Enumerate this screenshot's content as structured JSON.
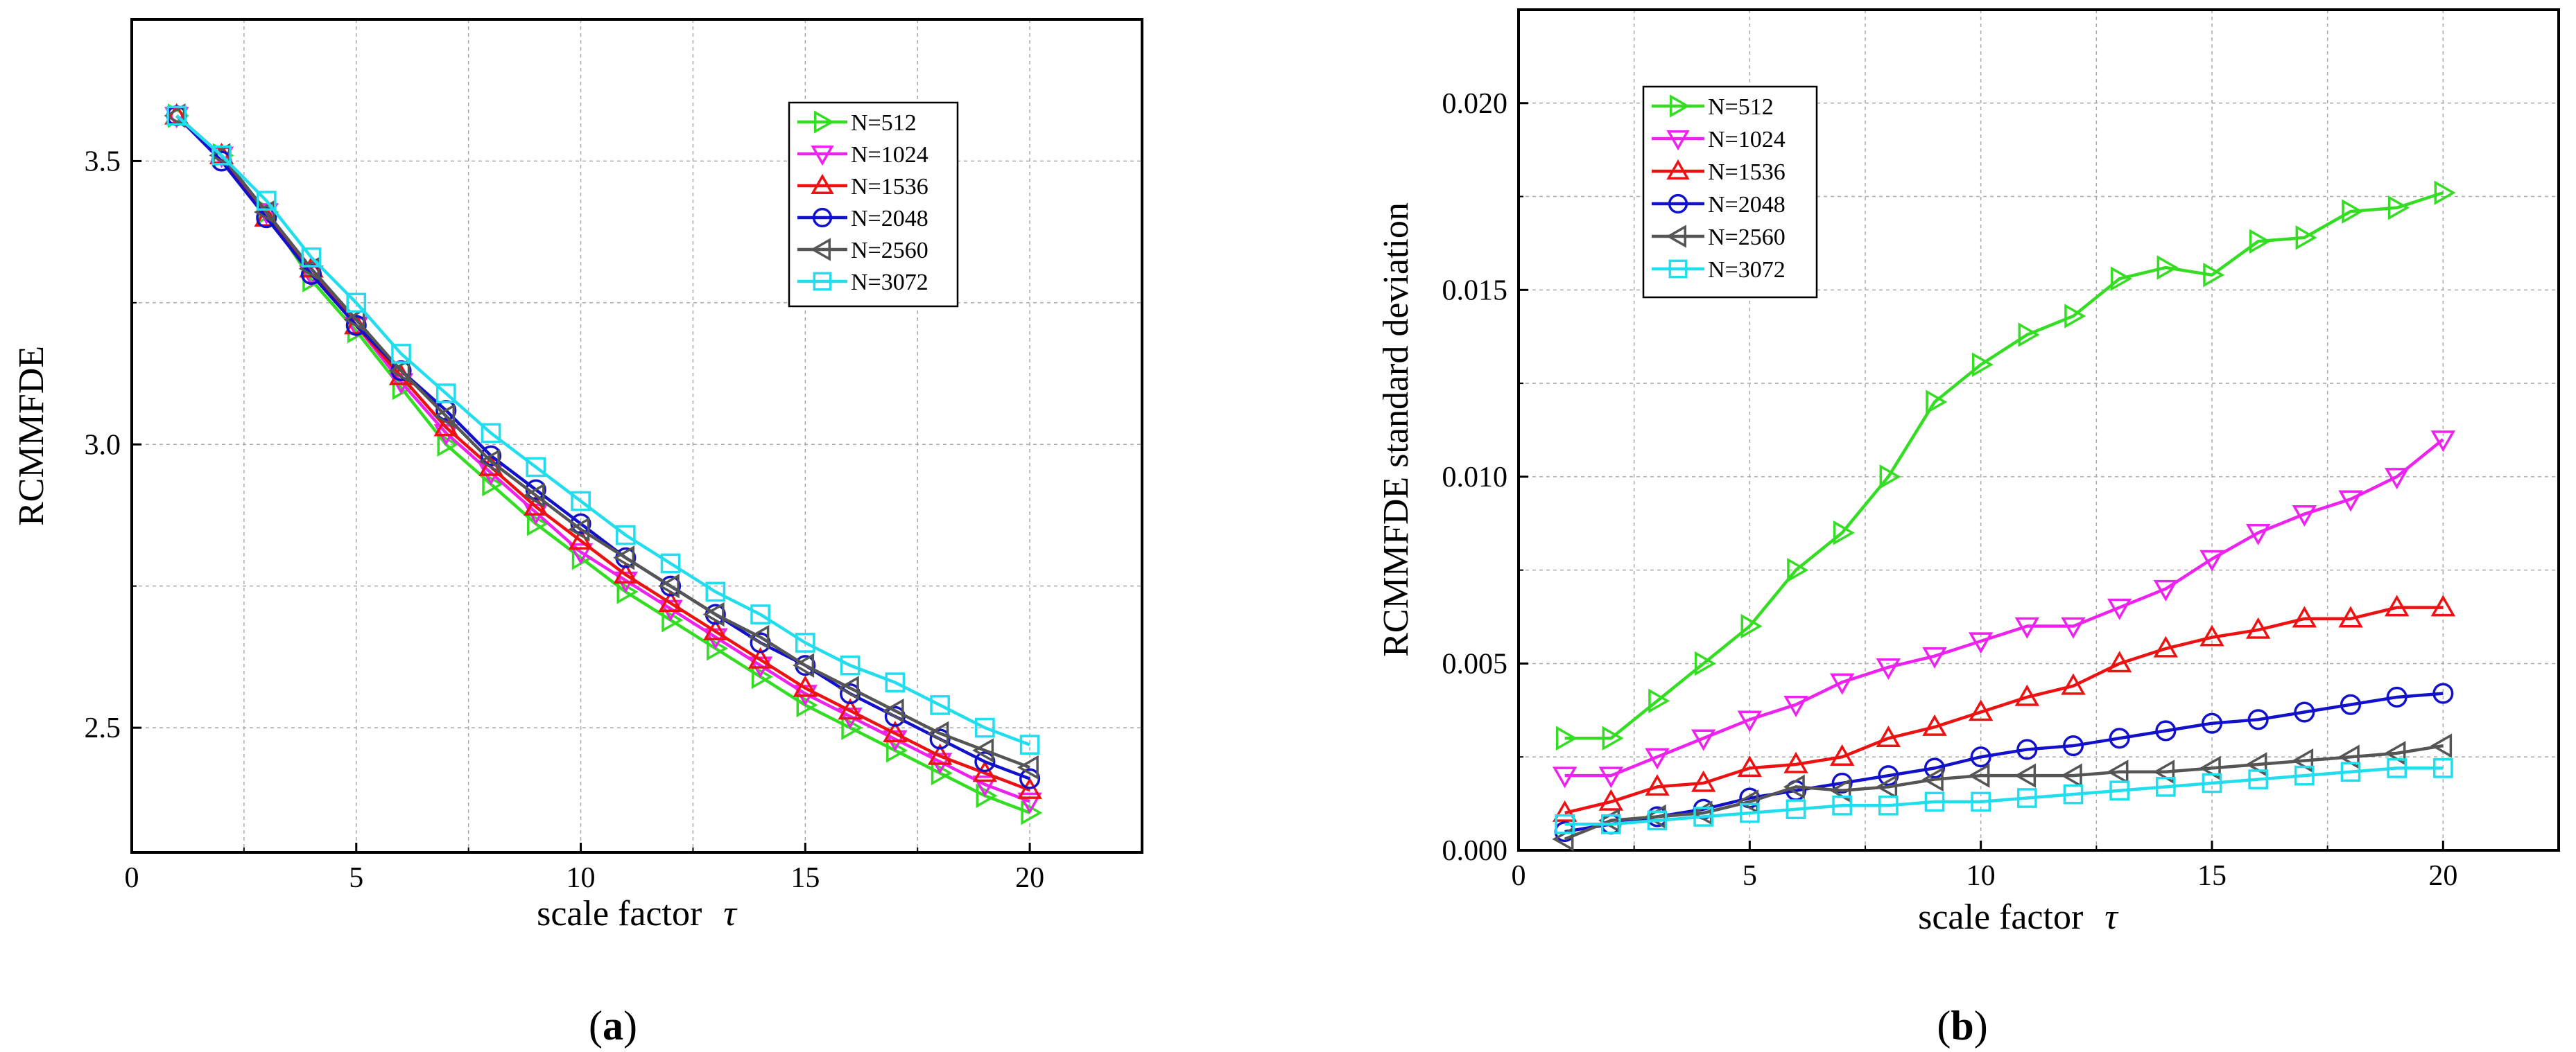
{
  "chart_data": [
    {
      "type": "line",
      "caption": "a",
      "title": "",
      "xlabel": "scale factor",
      "xsymbol": "τ",
      "ylabel": "RCMMFDE",
      "xlim": [
        0,
        22.5
      ],
      "ylim": [
        2.28,
        3.75
      ],
      "xticks": [
        0,
        5,
        10,
        15,
        20
      ],
      "xtick_labels": [
        "0",
        "5",
        "10",
        "15",
        "20"
      ],
      "yticks": [
        2.5,
        3.0,
        3.5
      ],
      "ytick_labels": [
        "2.5",
        "3.0",
        "3.5"
      ],
      "grid": true,
      "legend_position": "top-right",
      "x": [
        1,
        2,
        3,
        4,
        5,
        6,
        7,
        8,
        9,
        10,
        11,
        12,
        13,
        14,
        15,
        16,
        17,
        18,
        19,
        20
      ],
      "series": [
        {
          "name": "N=512",
          "color": "#33dd22",
          "marker": "triangle-right",
          "values": [
            3.58,
            3.51,
            3.41,
            3.29,
            3.2,
            3.1,
            3.0,
            2.93,
            2.86,
            2.8,
            2.74,
            2.69,
            2.64,
            2.59,
            2.54,
            2.5,
            2.46,
            2.42,
            2.38,
            2.35
          ]
        },
        {
          "name": "N=1024",
          "color": "#ee22ee",
          "marker": "triangle-down",
          "values": [
            3.58,
            3.51,
            3.41,
            3.3,
            3.21,
            3.11,
            3.02,
            2.95,
            2.88,
            2.81,
            2.76,
            2.71,
            2.66,
            2.61,
            2.56,
            2.52,
            2.48,
            2.44,
            2.4,
            2.37
          ]
        },
        {
          "name": "N=1536",
          "color": "#ee1111",
          "marker": "triangle-up",
          "values": [
            3.58,
            3.51,
            3.4,
            3.31,
            3.21,
            3.12,
            3.03,
            2.96,
            2.89,
            2.83,
            2.77,
            2.72,
            2.67,
            2.62,
            2.57,
            2.53,
            2.49,
            2.45,
            2.42,
            2.39
          ]
        },
        {
          "name": "N=2048",
          "color": "#1111cc",
          "marker": "circle",
          "values": [
            3.58,
            3.5,
            3.4,
            3.3,
            3.21,
            3.13,
            3.06,
            2.98,
            2.92,
            2.86,
            2.8,
            2.75,
            2.7,
            2.65,
            2.61,
            2.56,
            2.52,
            2.48,
            2.44,
            2.41
          ]
        },
        {
          "name": "N=2560",
          "color": "#555555",
          "marker": "triangle-left",
          "values": [
            3.58,
            3.51,
            3.41,
            3.31,
            3.22,
            3.13,
            3.05,
            2.97,
            2.91,
            2.85,
            2.8,
            2.75,
            2.7,
            2.66,
            2.61,
            2.57,
            2.53,
            2.49,
            2.46,
            2.43
          ]
        },
        {
          "name": "N=3072",
          "color": "#22ddee",
          "marker": "square",
          "values": [
            3.58,
            3.51,
            3.43,
            3.33,
            3.25,
            3.16,
            3.09,
            3.02,
            2.96,
            2.9,
            2.84,
            2.79,
            2.74,
            2.7,
            2.65,
            2.61,
            2.58,
            2.54,
            2.5,
            2.47
          ]
        }
      ]
    },
    {
      "type": "line",
      "caption": "b",
      "title": "",
      "xlabel": "scale factor",
      "xsymbol": "τ",
      "ylabel": "RCMMFDE standard deviation",
      "xlim": [
        0,
        22.5
      ],
      "ylim": [
        0.0,
        0.0225
      ],
      "xticks": [
        0,
        5,
        10,
        15,
        20
      ],
      "xtick_labels": [
        "0",
        "5",
        "10",
        "15",
        "20"
      ],
      "yticks": [
        0.0,
        0.005,
        0.01,
        0.015,
        0.02
      ],
      "ytick_labels": [
        "0.000",
        "0.005",
        "0.010",
        "0.015",
        "0.020"
      ],
      "grid": true,
      "legend_position": "top-left",
      "x": [
        1,
        2,
        3,
        4,
        5,
        6,
        7,
        8,
        9,
        10,
        11,
        12,
        13,
        14,
        15,
        16,
        17,
        18,
        19,
        20
      ],
      "series": [
        {
          "name": "N=512",
          "color": "#33dd22",
          "marker": "triangle-right",
          "values": [
            0.003,
            0.003,
            0.004,
            0.005,
            0.006,
            0.0075,
            0.0085,
            0.01,
            0.012,
            0.013,
            0.0138,
            0.0143,
            0.0153,
            0.0156,
            0.0154,
            0.0163,
            0.0164,
            0.0171,
            0.0172,
            0.0176
          ]
        },
        {
          "name": "N=1024",
          "color": "#ee22ee",
          "marker": "triangle-down",
          "values": [
            0.002,
            0.002,
            0.0025,
            0.003,
            0.0035,
            0.0039,
            0.0045,
            0.0049,
            0.0052,
            0.0056,
            0.006,
            0.006,
            0.0065,
            0.007,
            0.0078,
            0.0085,
            0.009,
            0.0094,
            0.01,
            0.011
          ]
        },
        {
          "name": "N=1536",
          "color": "#ee1111",
          "marker": "triangle-up",
          "values": [
            0.001,
            0.0013,
            0.0017,
            0.0018,
            0.0022,
            0.0023,
            0.0025,
            0.003,
            0.0033,
            0.0037,
            0.0041,
            0.0044,
            0.005,
            0.0054,
            0.0057,
            0.0059,
            0.0062,
            0.0062,
            0.0065,
            0.0065
          ]
        },
        {
          "name": "N=2048",
          "color": "#1111cc",
          "marker": "circle",
          "values": [
            0.0005,
            0.0007,
            0.0009,
            0.0011,
            0.0014,
            0.0016,
            0.0018,
            0.002,
            0.0022,
            0.0025,
            0.0027,
            0.0028,
            0.003,
            0.0032,
            0.0034,
            0.0035,
            0.0037,
            0.0039,
            0.0041,
            0.0042
          ]
        },
        {
          "name": "N=2560",
          "color": "#555555",
          "marker": "triangle-left",
          "values": [
            0.0003,
            0.0008,
            0.0009,
            0.001,
            0.0013,
            0.0017,
            0.0016,
            0.0017,
            0.0019,
            0.002,
            0.002,
            0.002,
            0.0021,
            0.0021,
            0.0022,
            0.0023,
            0.0024,
            0.0025,
            0.0026,
            0.0028
          ]
        },
        {
          "name": "N=3072",
          "color": "#22ddee",
          "marker": "square",
          "values": [
            0.0007,
            0.0007,
            0.0008,
            0.0009,
            0.001,
            0.0011,
            0.0012,
            0.0012,
            0.0013,
            0.0013,
            0.0014,
            0.0015,
            0.0016,
            0.0017,
            0.0018,
            0.0019,
            0.002,
            0.0021,
            0.0022,
            0.0022
          ]
        }
      ]
    }
  ],
  "captions": {
    "a": {
      "open": "(",
      "letter": "a",
      "close": ")"
    },
    "b": {
      "open": "(",
      "letter": "b",
      "close": ")"
    }
  }
}
